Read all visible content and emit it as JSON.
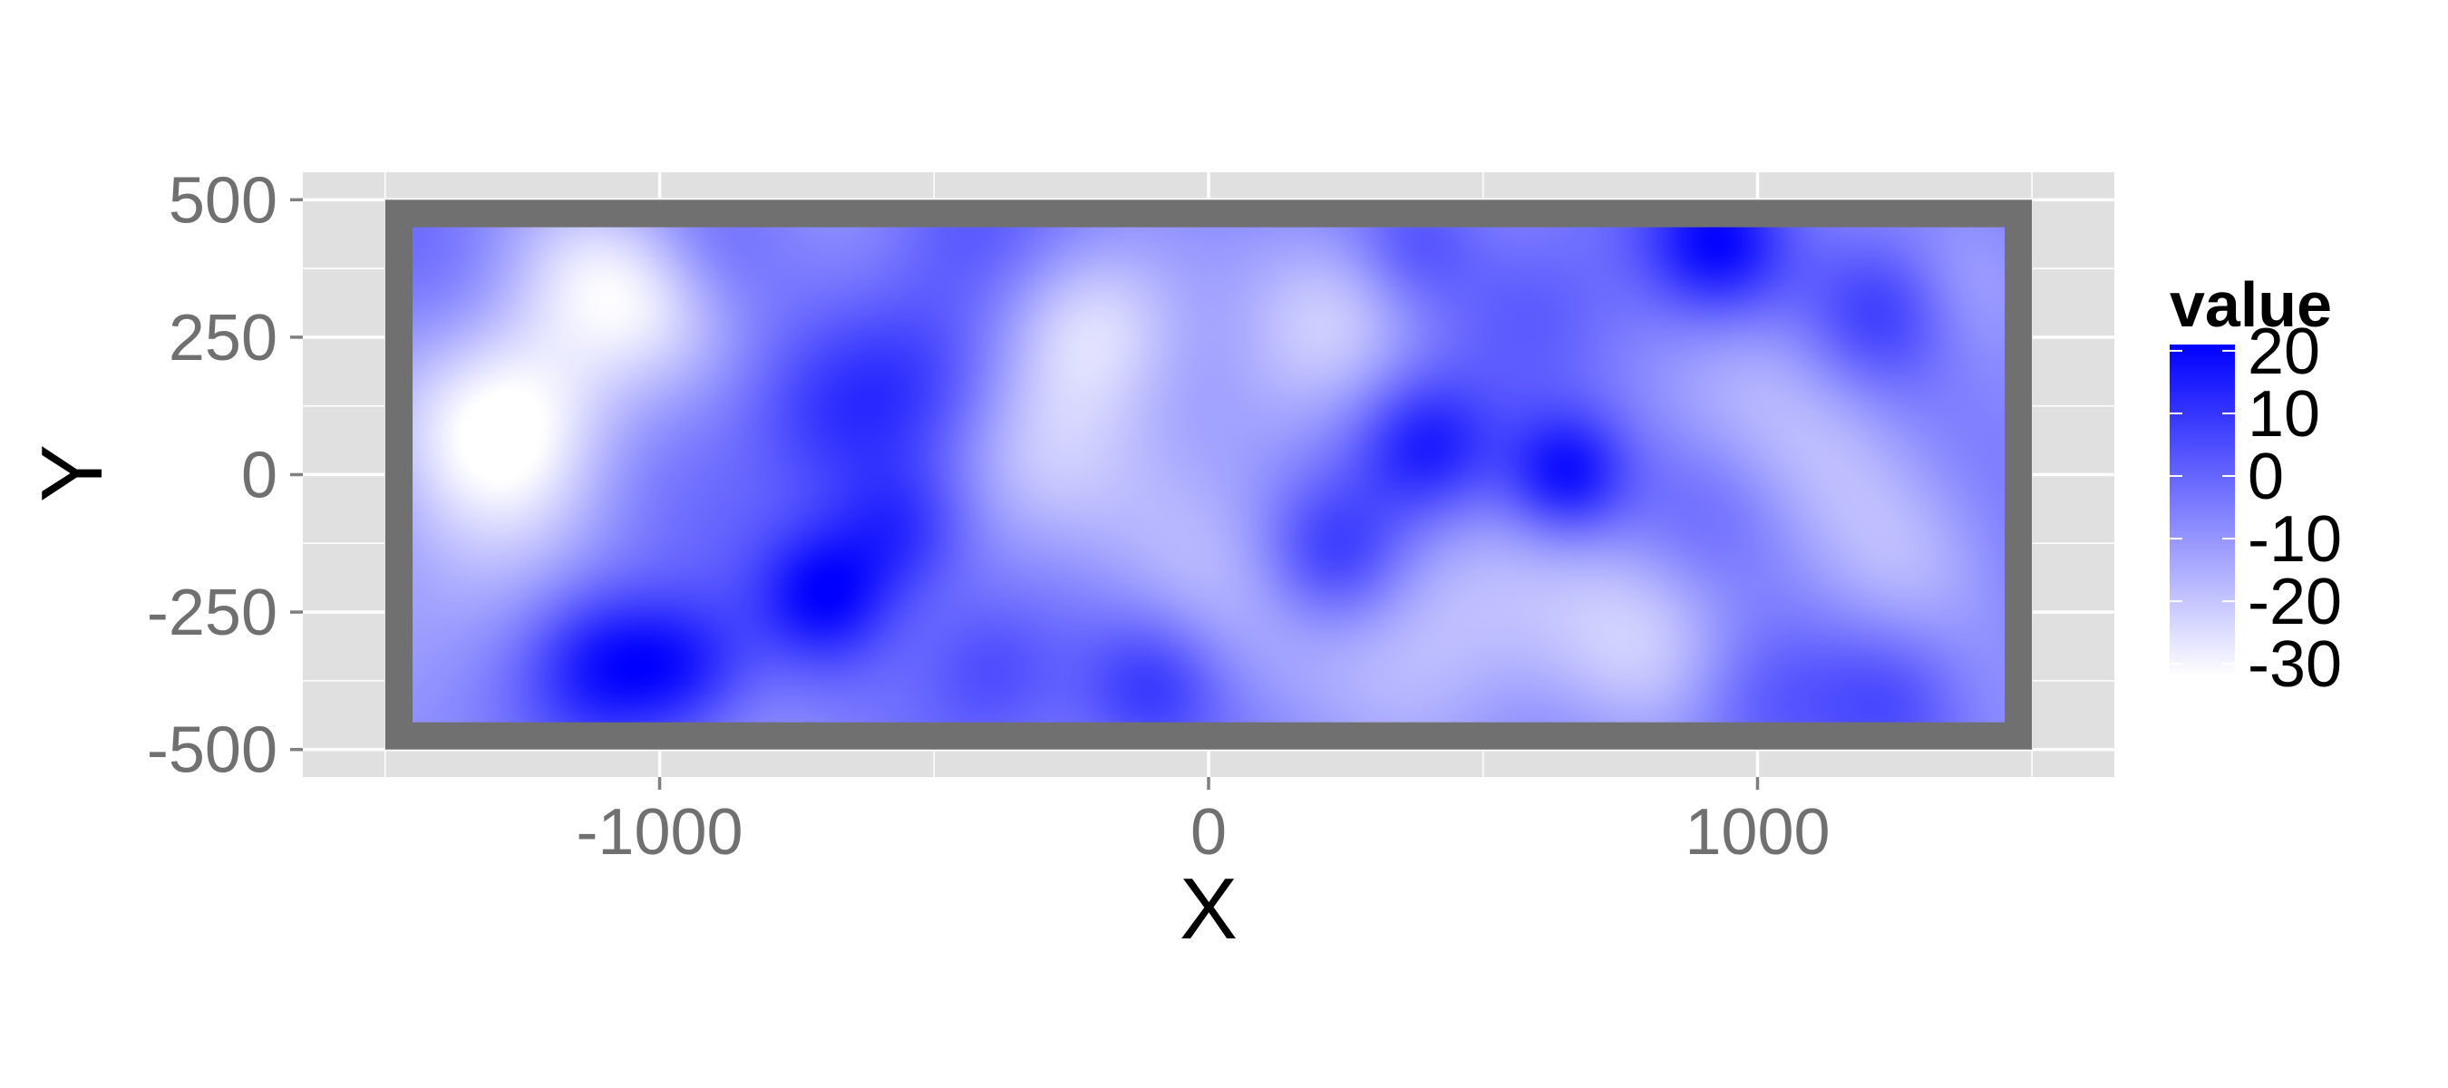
{
  "chart_data": {
    "type": "heatmap",
    "title": "",
    "xlabel": "X",
    "ylabel": "Y",
    "xlim": [
      -1650,
      1650
    ],
    "ylim": [
      -550,
      550
    ],
    "x_ticks": [
      -1000,
      0,
      1000
    ],
    "x_tick_labels": [
      "-1000",
      "0",
      "1000"
    ],
    "y_ticks": [
      500,
      250,
      0,
      -250,
      -500
    ],
    "y_tick_labels": [
      "500",
      "250",
      "0",
      "-250",
      "-500"
    ],
    "grid": true,
    "panel_background": "#e0e0e0",
    "grid_color": "#ffffff",
    "border_color": "#707070",
    "border_rect": {
      "x": [
        -1500,
        1500
      ],
      "y": [
        -500,
        500
      ]
    },
    "raster_extent": {
      "x": [
        -1450,
        1450
      ],
      "y": [
        -450,
        450
      ]
    },
    "legend": {
      "title": "value",
      "position": "right",
      "low_color": "#ffffff",
      "high_color": "#0000ff",
      "min": -32,
      "max": 21,
      "ticks": [
        20,
        10,
        0,
        -10,
        -20,
        -30
      ],
      "tick_labels": [
        "20",
        "10",
        "0",
        "-10",
        "-20",
        "-30"
      ]
    },
    "field_base": -5,
    "field_features": [
      {
        "x": -1270,
        "y": 100,
        "v": -27,
        "r": 140
      },
      {
        "x": -1140,
        "y": 370,
        "v": -16,
        "r": 120
      },
      {
        "x": -1000,
        "y": 300,
        "v": -12,
        "r": 110
      },
      {
        "x": -1380,
        "y": -250,
        "v": -10,
        "r": 160
      },
      {
        "x": -200,
        "y": 280,
        "v": -22,
        "r": 120
      },
      {
        "x": -330,
        "y": 20,
        "v": -12,
        "r": 130
      },
      {
        "x": -20,
        "y": -200,
        "v": -10,
        "r": 150
      },
      {
        "x": 230,
        "y": 280,
        "v": -12,
        "r": 110
      },
      {
        "x": 430,
        "y": -260,
        "v": -14,
        "r": 150
      },
      {
        "x": 800,
        "y": -310,
        "v": -18,
        "r": 150
      },
      {
        "x": 1150,
        "y": 60,
        "v": -10,
        "r": 120
      },
      {
        "x": 1280,
        "y": -120,
        "v": -12,
        "r": 130
      },
      {
        "x": 1000,
        "y": 200,
        "v": -8,
        "r": 120
      },
      {
        "x": 1380,
        "y": 350,
        "v": -6,
        "r": 100
      },
      {
        "x": 100,
        "y": 100,
        "v": -8,
        "r": 120
      },
      {
        "x": -700,
        "y": -220,
        "v": 24,
        "r": 90
      },
      {
        "x": -560,
        "y": -100,
        "v": 16,
        "r": 90
      },
      {
        "x": -1100,
        "y": -340,
        "v": 22,
        "r": 100
      },
      {
        "x": -950,
        "y": -350,
        "v": 18,
        "r": 90
      },
      {
        "x": -520,
        "y": 180,
        "v": 12,
        "r": 120
      },
      {
        "x": -700,
        "y": 100,
        "v": 10,
        "r": 110
      },
      {
        "x": 400,
        "y": 50,
        "v": 22,
        "r": 90
      },
      {
        "x": 650,
        "y": 0,
        "v": 25,
        "r": 80
      },
      {
        "x": 230,
        "y": -150,
        "v": 16,
        "r": 90
      },
      {
        "x": 930,
        "y": 420,
        "v": 22,
        "r": 90
      },
      {
        "x": 1230,
        "y": 300,
        "v": 18,
        "r": 100
      },
      {
        "x": 380,
        "y": 420,
        "v": 10,
        "r": 80
      },
      {
        "x": -100,
        "y": -380,
        "v": 14,
        "r": 90
      },
      {
        "x": -400,
        "y": -350,
        "v": 10,
        "r": 90
      },
      {
        "x": 1000,
        "y": -420,
        "v": 10,
        "r": 110
      },
      {
        "x": 1250,
        "y": -400,
        "v": 12,
        "r": 100
      },
      {
        "x": 900,
        "y": -80,
        "v": 8,
        "r": 110
      },
      {
        "x": -450,
        "y": 420,
        "v": 6,
        "r": 100
      },
      {
        "x": -900,
        "y": 400,
        "v": 6,
        "r": 90
      },
      {
        "x": 600,
        "y": 300,
        "v": 6,
        "r": 100
      }
    ]
  }
}
